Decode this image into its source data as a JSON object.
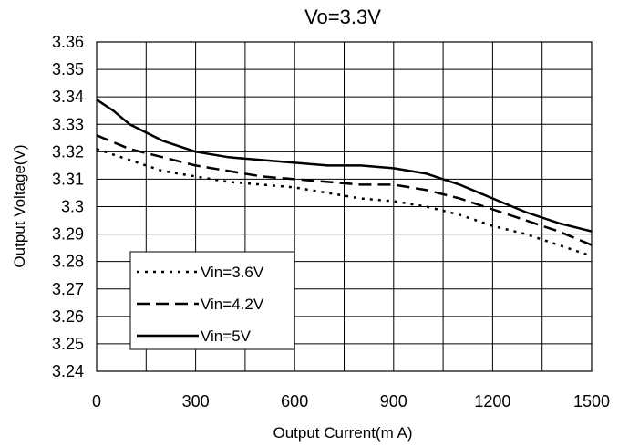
{
  "chart_data": {
    "type": "line",
    "title": "Vo=3.3V",
    "xlabel": "Output Current(m A)",
    "ylabel": "Output Voltage(V)",
    "xlim": [
      0,
      1500
    ],
    "ylim": [
      3.24,
      3.36
    ],
    "grid": true,
    "legend_position": "bottom-left",
    "x_ticks": [
      "0",
      "300",
      "600",
      "900",
      "1200",
      "1500"
    ],
    "x_tick_values": [
      0,
      300,
      600,
      900,
      1200,
      1500
    ],
    "y_ticks": [
      "3.24",
      "3.25",
      "3.26",
      "3.27",
      "3.28",
      "3.29",
      "3.3",
      "3.31",
      "3.32",
      "3.33",
      "3.34",
      "3.35",
      "3.36"
    ],
    "y_tick_values": [
      3.24,
      3.25,
      3.26,
      3.27,
      3.28,
      3.29,
      3.3,
      3.31,
      3.32,
      3.33,
      3.34,
      3.35,
      3.36
    ],
    "series": [
      {
        "name": "Vin=3.6V",
        "style": "dotted",
        "x": [
          0,
          100,
          200,
          300,
          400,
          500,
          600,
          700,
          800,
          900,
          1000,
          1100,
          1200,
          1300,
          1400,
          1500
        ],
        "y": [
          3.321,
          3.317,
          3.313,
          3.311,
          3.309,
          3.308,
          3.307,
          3.305,
          3.303,
          3.302,
          3.3,
          3.297,
          3.293,
          3.29,
          3.286,
          3.282
        ]
      },
      {
        "name": "Vin=4.2V",
        "style": "dashed",
        "x": [
          0,
          100,
          200,
          300,
          400,
          500,
          600,
          700,
          800,
          900,
          1000,
          1100,
          1200,
          1300,
          1400,
          1500
        ],
        "y": [
          3.326,
          3.321,
          3.318,
          3.315,
          3.313,
          3.311,
          3.31,
          3.309,
          3.308,
          3.308,
          3.306,
          3.303,
          3.299,
          3.295,
          3.291,
          3.286
        ]
      },
      {
        "name": "Vin=5V",
        "style": "solid",
        "x": [
          0,
          50,
          100,
          200,
          300,
          400,
          500,
          600,
          700,
          800,
          900,
          1000,
          1100,
          1200,
          1300,
          1400,
          1500
        ],
        "y": [
          3.339,
          3.335,
          3.33,
          3.324,
          3.32,
          3.318,
          3.317,
          3.316,
          3.315,
          3.315,
          3.314,
          3.312,
          3.308,
          3.303,
          3.298,
          3.294,
          3.291
        ]
      }
    ]
  }
}
